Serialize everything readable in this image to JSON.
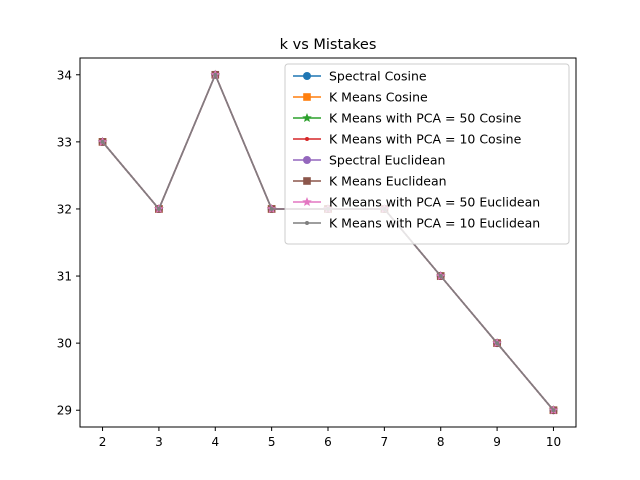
{
  "chart_data": {
    "type": "line",
    "title": "k vs Mistakes",
    "xlabel": "",
    "ylabel": "",
    "x": [
      2,
      3,
      4,
      5,
      6,
      7,
      8,
      9,
      10
    ],
    "xlim": [
      1.6,
      10.4
    ],
    "ylim": [
      28.75,
      34.25
    ],
    "xticks": [
      2,
      3,
      4,
      5,
      6,
      7,
      8,
      9,
      10
    ],
    "yticks": [
      29,
      30,
      31,
      32,
      33,
      34
    ],
    "grid": false,
    "legend_position": "top-right",
    "series": [
      {
        "name": "Spectral Cosine",
        "color": "#1f77b4",
        "marker": "circle",
        "values": [
          33,
          32,
          34,
          32,
          32,
          32,
          31,
          30,
          29
        ]
      },
      {
        "name": "K Means Cosine",
        "color": "#ff7f0e",
        "marker": "square",
        "values": [
          33,
          32,
          34,
          32,
          32,
          32,
          31,
          30,
          29
        ]
      },
      {
        "name": "K Means with PCA = 50 Cosine",
        "color": "#2ca02c",
        "marker": "star",
        "values": [
          33,
          32,
          34,
          32,
          32,
          32,
          31,
          30,
          29
        ]
      },
      {
        "name": "K Means with PCA = 10 Cosine",
        "color": "#d62728",
        "marker": "point",
        "values": [
          33,
          32,
          34,
          32,
          32,
          32,
          31,
          30,
          29
        ]
      },
      {
        "name": "Spectral Euclidean",
        "color": "#9467bd",
        "marker": "circle",
        "values": [
          33,
          32,
          34,
          32,
          32,
          32,
          31,
          30,
          29
        ]
      },
      {
        "name": "K Means Euclidean",
        "color": "#8c564b",
        "marker": "square",
        "values": [
          33,
          32,
          34,
          32,
          32,
          32,
          31,
          30,
          29
        ]
      },
      {
        "name": "K Means with PCA = 50 Euclidean",
        "color": "#e377c2",
        "marker": "star",
        "values": [
          33,
          32,
          34,
          32,
          32,
          32,
          31,
          30,
          29
        ]
      },
      {
        "name": "K Means with PCA = 10 Euclidean",
        "color": "#7f7f7f",
        "marker": "point",
        "values": [
          33,
          32,
          34,
          32,
          32,
          32,
          31,
          30,
          29
        ]
      }
    ]
  }
}
